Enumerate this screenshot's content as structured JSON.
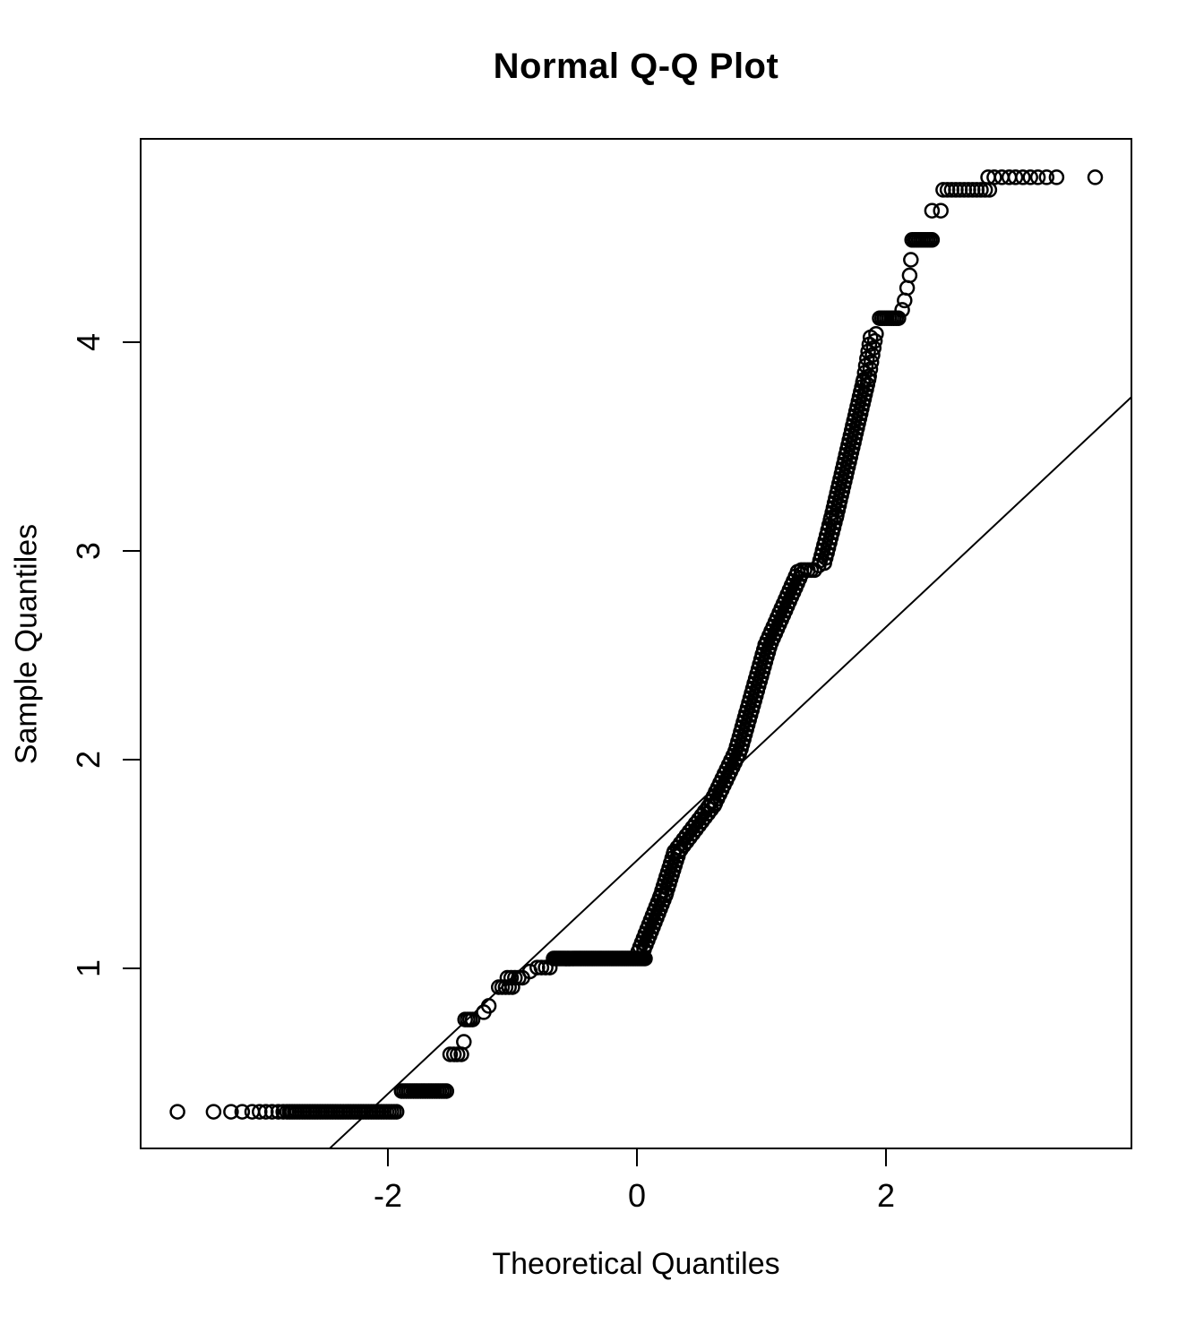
{
  "title": "Normal Q-Q Plot",
  "chart_data": {
    "type": "scatter",
    "title": "Normal Q-Q Plot",
    "xlabel": "Theoretical Quantiles",
    "ylabel": "Sample Quantiles",
    "xlim": [
      -3.99,
      3.97
    ],
    "ylim": [
      0.14,
      4.97
    ],
    "x_ticks": {
      "labels": [
        "-2",
        "0",
        "2"
      ],
      "values": [
        -2,
        0,
        2
      ]
    },
    "y_ticks": {
      "labels": [
        "1",
        "2",
        "3",
        "4"
      ],
      "values": [
        1,
        2,
        3,
        4
      ]
    },
    "grid": false,
    "legend": "none",
    "point_style": "open-circle",
    "point_color": "#000000",
    "background_color": "#ffffff",
    "reference_line": {
      "q1": -2.468,
      "v1": 0.137,
      "q2": 3.971,
      "v2": 3.737
    },
    "singles": [
      [
        -3.69,
        0.313
      ],
      [
        -3.4,
        0.313
      ],
      [
        -3.26,
        0.313
      ],
      [
        -3.17,
        0.313
      ],
      [
        -3.09,
        0.313
      ],
      [
        -3.03,
        0.313
      ],
      [
        -2.98,
        0.313
      ],
      [
        -2.93,
        0.313
      ],
      [
        -2.88,
        0.313
      ],
      [
        -2.84,
        0.313
      ],
      [
        -1.39,
        0.648
      ],
      [
        -1.23,
        0.79
      ],
      [
        -1.19,
        0.82
      ],
      [
        -0.86,
        0.985
      ],
      [
        2.13,
        4.155
      ],
      [
        2.15,
        4.2
      ],
      [
        2.17,
        4.26
      ],
      [
        2.19,
        4.32
      ],
      [
        2.2,
        4.395
      ],
      [
        2.37,
        4.63
      ],
      [
        2.44,
        4.63
      ],
      [
        2.82,
        4.79
      ],
      [
        2.87,
        4.79
      ],
      [
        2.93,
        4.79
      ],
      [
        2.99,
        4.79
      ],
      [
        3.04,
        4.79
      ],
      [
        3.1,
        4.79
      ],
      [
        3.16,
        4.79
      ],
      [
        3.22,
        4.79
      ],
      [
        3.29,
        4.79
      ],
      [
        3.37,
        4.79
      ],
      [
        3.68,
        4.79
      ]
    ],
    "runs": [
      {
        "v": 0.313,
        "q1": -2.81,
        "q2": -1.93,
        "n": 44
      },
      {
        "v": 0.412,
        "q1": -1.89,
        "q2": -1.53,
        "n": 20
      },
      {
        "v": 0.588,
        "q1": -1.5,
        "q2": -1.41,
        "n": 4
      },
      {
        "v": 0.755,
        "q1": -1.38,
        "q2": -1.32,
        "n": 4
      },
      {
        "v": 0.91,
        "q1": -1.11,
        "q2": -1.0,
        "n": 5
      },
      {
        "v": 0.955,
        "q1": -1.04,
        "q2": -0.92,
        "n": 5
      },
      {
        "v": 1.004,
        "q1": -0.8,
        "q2": -0.7,
        "n": 4
      },
      {
        "v": 1.047,
        "q1": -0.669,
        "q2": 0.065,
        "n": 50
      },
      {
        "v": 2.908,
        "q1": 1.32,
        "q2": 1.425,
        "n": 5
      },
      {
        "v": 4.115,
        "q1": 1.95,
        "q2": 2.1,
        "n": 9
      },
      {
        "v": 4.49,
        "q1": 2.21,
        "q2": 2.37,
        "n": 10
      },
      {
        "v": 4.73,
        "q1": 2.46,
        "q2": 2.83,
        "n": 12
      }
    ],
    "chains": [
      {
        "q1": 0.03,
        "v1": 1.08,
        "q2": 0.21,
        "v2": 1.35,
        "n": 26
      },
      {
        "q1": 0.21,
        "v1": 1.35,
        "q2": 0.32,
        "v2": 1.56,
        "n": 20
      },
      {
        "q1": 0.32,
        "v1": 1.56,
        "q2": 0.6,
        "v2": 1.78,
        "n": 24
      },
      {
        "q1": 0.6,
        "v1": 1.78,
        "q2": 0.81,
        "v2": 2.04,
        "n": 25
      },
      {
        "q1": 0.81,
        "v1": 2.04,
        "q2": 1.05,
        "v2": 2.55,
        "n": 45
      },
      {
        "q1": 1.05,
        "v1": 2.55,
        "q2": 1.31,
        "v2": 2.9,
        "n": 33
      },
      {
        "q1": 1.48,
        "v1": 2.93,
        "q2": 1.58,
        "v2": 3.16,
        "n": 20
      },
      {
        "q1": 1.58,
        "v1": 3.16,
        "q2": 1.84,
        "v2": 3.82,
        "n": 58
      },
      {
        "q1": 1.84,
        "v1": 3.82,
        "q2": 1.9,
        "v2": 4.04,
        "n": 14
      }
    ]
  }
}
